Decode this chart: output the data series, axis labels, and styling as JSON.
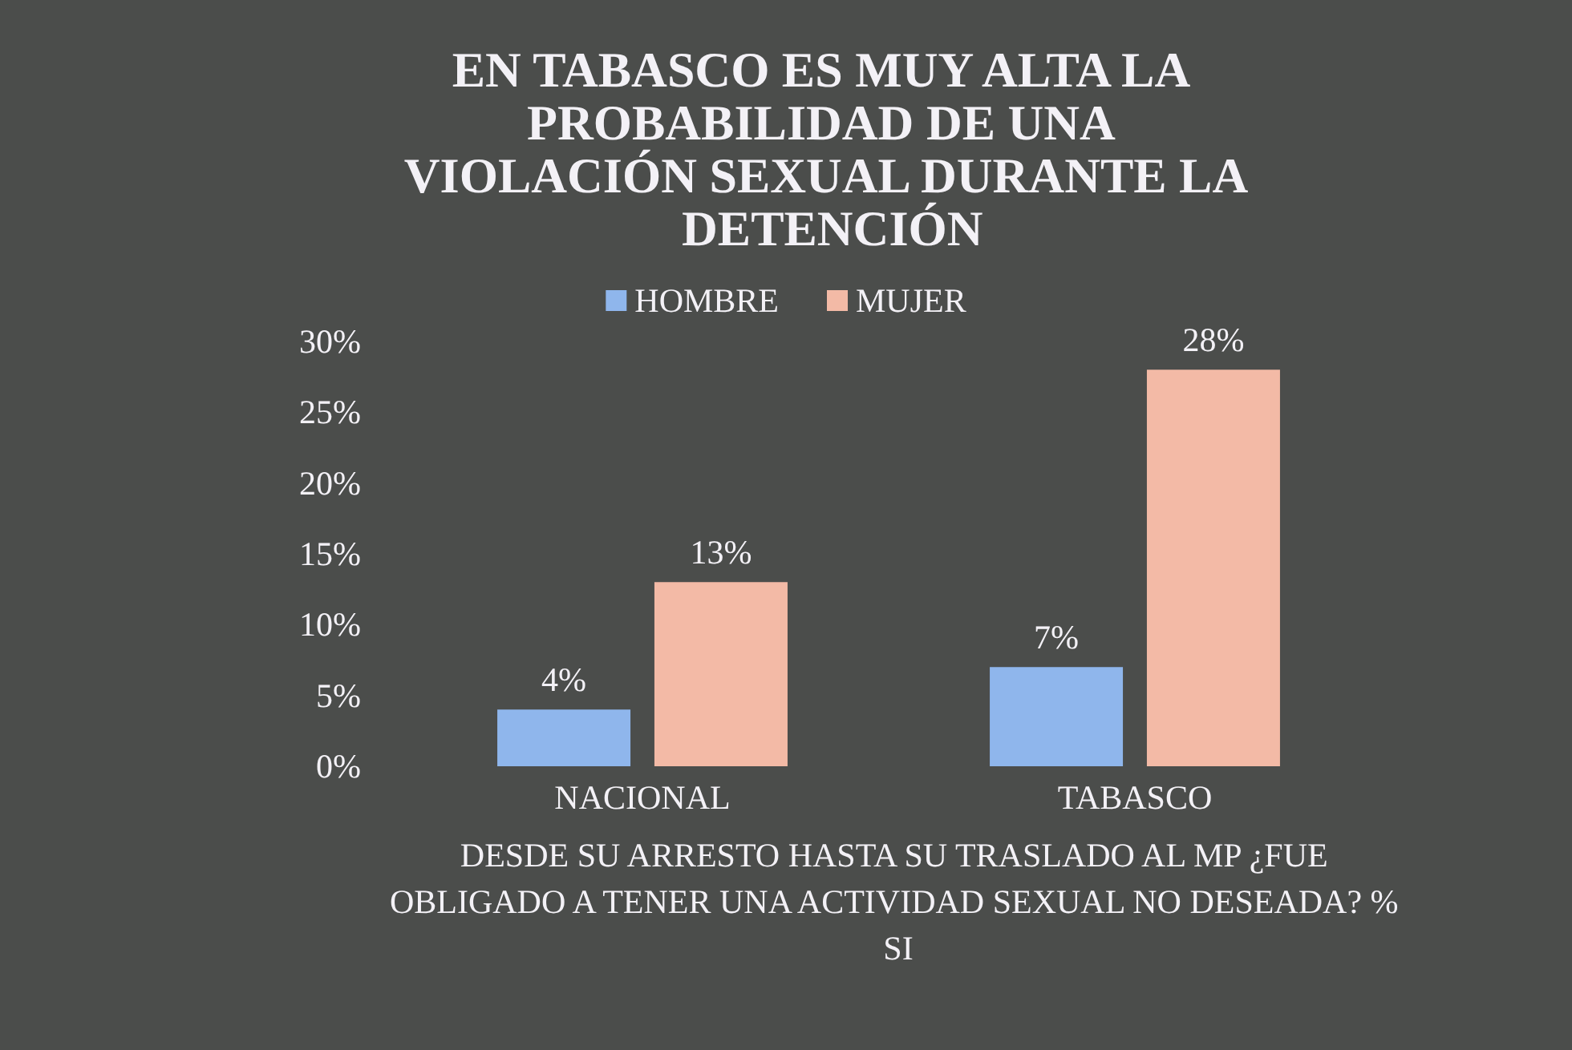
{
  "chart_data": {
    "type": "bar",
    "title": "EN TABASCO ES MUY ALTA LA PROBABILIDAD DE UNA VIOLACIÓN SEXUAL DURANTE LA DETENCIÓN",
    "xlabel": "DESDE SU ARRESTO HASTA SU TRASLADO AL MP ¿FUE OBLIGADO A TENER UNA ACTIVIDAD SEXUAL NO DESEADA? % SI",
    "categories": [
      "NACIONAL",
      "TABASCO"
    ],
    "series": [
      {
        "name": "HOMBRE",
        "color": "#8fb6ec",
        "values": [
          4,
          7
        ],
        "value_labels": [
          "4%",
          "7%"
        ]
      },
      {
        "name": "MUJER",
        "color": "#f3baa6",
        "values": [
          13,
          28
        ],
        "value_labels": [
          "13%",
          "28%"
        ]
      }
    ],
    "ylim": [
      0,
      30
    ],
    "yticks": [
      {
        "value": 0,
        "label": "0%"
      },
      {
        "value": 5,
        "label": "5%"
      },
      {
        "value": 10,
        "label": "10%"
      },
      {
        "value": 15,
        "label": "15%"
      },
      {
        "value": 20,
        "label": "20%"
      },
      {
        "value": 25,
        "label": "25%"
      },
      {
        "value": 30,
        "label": "30%"
      }
    ],
    "legend": "top"
  }
}
